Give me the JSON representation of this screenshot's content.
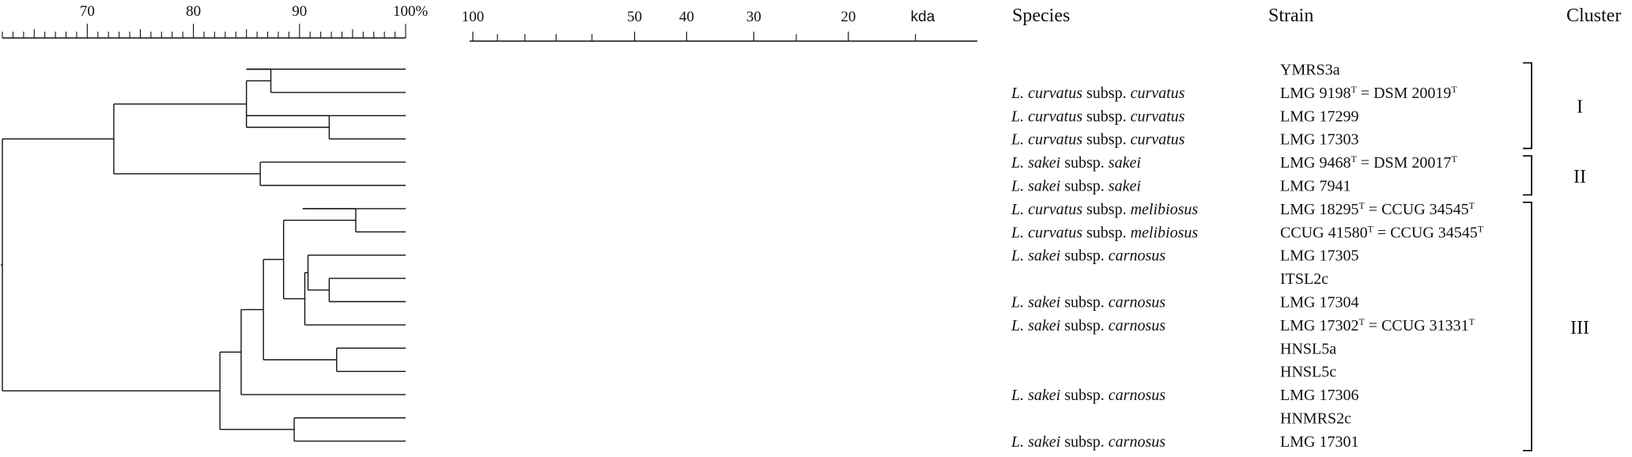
{
  "similarity_axis": {
    "ticks": [
      {
        "value": 70,
        "label": "70"
      },
      {
        "value": 80,
        "label": "80"
      },
      {
        "value": 90,
        "label": "90"
      },
      {
        "value": 100,
        "label": "100%"
      }
    ],
    "range": [
      62,
      100
    ]
  },
  "mw_axis": {
    "unit": "kda",
    "labeled_ticks": [
      {
        "value": 100,
        "label": "100"
      },
      {
        "value": 50,
        "label": "50"
      },
      {
        "value": 40,
        "label": "40"
      },
      {
        "value": 30,
        "label": "30"
      },
      {
        "value": 20,
        "label": "20"
      }
    ],
    "minor_ticks": [
      90,
      80,
      70,
      60,
      25,
      15
    ],
    "range": [
      100,
      13
    ]
  },
  "headers": {
    "species": "Species",
    "strain": "Strain",
    "cluster": "Cluster"
  },
  "rows": [
    {
      "species": {
        "genus": "",
        "sub": "",
        "epithet": ""
      },
      "strain": [
        {
          "t": "YMRS3a"
        }
      ]
    },
    {
      "species": {
        "genus": "L. curvatus",
        "sub": "subsp.",
        "epithet": "curvatus"
      },
      "strain": [
        {
          "t": "LMG 9198"
        },
        {
          "t": "T",
          "sup": true
        },
        {
          "t": " = DSM 20019"
        },
        {
          "t": "T",
          "sup": true
        }
      ]
    },
    {
      "species": {
        "genus": "L. curvatus",
        "sub": "subsp.",
        "epithet": "curvatus"
      },
      "strain": [
        {
          "t": "LMG 17299"
        }
      ]
    },
    {
      "species": {
        "genus": "L. curvatus",
        "sub": "subsp.",
        "epithet": "curvatus"
      },
      "strain": [
        {
          "t": "LMG 17303"
        }
      ]
    },
    {
      "species": {
        "genus": "L. sakei",
        "sub": "subsp.",
        "epithet": "sakei"
      },
      "strain": [
        {
          "t": "LMG 9468"
        },
        {
          "t": "T",
          "sup": true
        },
        {
          "t": " = DSM 20017"
        },
        {
          "t": "T",
          "sup": true
        }
      ]
    },
    {
      "species": {
        "genus": "L. sakei",
        "sub": "subsp.",
        "epithet": "sakei"
      },
      "strain": [
        {
          "t": "LMG 7941"
        }
      ]
    },
    {
      "species": {
        "genus": "L. curvatus",
        "sub": "subsp.",
        "epithet": "melibiosus"
      },
      "strain": [
        {
          "t": "LMG 18295"
        },
        {
          "t": "T",
          "sup": true
        },
        {
          "t": " = CCUG 34545"
        },
        {
          "t": "T",
          "sup": true
        }
      ]
    },
    {
      "species": {
        "genus": "L. curvatus",
        "sub": "subsp.",
        "epithet": "melibiosus"
      },
      "strain": [
        {
          "t": "CCUG 41580"
        },
        {
          "t": "T",
          "sup": true
        },
        {
          "t": " = CCUG 34545"
        },
        {
          "t": "T",
          "sup": true
        }
      ]
    },
    {
      "species": {
        "genus": "L. sakei",
        "sub": "subsp.",
        "epithet": "carnosus"
      },
      "strain": [
        {
          "t": "LMG 17305"
        }
      ]
    },
    {
      "species": {
        "genus": "",
        "sub": "",
        "epithet": ""
      },
      "strain": [
        {
          "t": "ITSL2c"
        }
      ]
    },
    {
      "species": {
        "genus": "L. sakei",
        "sub": "subsp.",
        "epithet": "carnosus"
      },
      "strain": [
        {
          "t": "LMG 17304"
        }
      ]
    },
    {
      "species": {
        "genus": "L. sakei",
        "sub": "subsp.",
        "epithet": "carnosus"
      },
      "strain": [
        {
          "t": "LMG 17302"
        },
        {
          "t": "T",
          "sup": true
        },
        {
          "t": " = CCUG 31331"
        },
        {
          "t": "T",
          "sup": true
        }
      ]
    },
    {
      "species": {
        "genus": "",
        "sub": "",
        "epithet": ""
      },
      "strain": [
        {
          "t": "HNSL5a"
        }
      ]
    },
    {
      "species": {
        "genus": "",
        "sub": "",
        "epithet": ""
      },
      "strain": [
        {
          "t": "HNSL5c"
        }
      ]
    },
    {
      "species": {
        "genus": "L. sakei",
        "sub": "subsp.",
        "epithet": "carnosus"
      },
      "strain": [
        {
          "t": "LMG 17306"
        }
      ]
    },
    {
      "species": {
        "genus": "",
        "sub": "",
        "epithet": ""
      },
      "strain": [
        {
          "t": "HNMRS2c"
        }
      ]
    },
    {
      "species": {
        "genus": "L. sakei",
        "sub": "subsp.",
        "epithet": "carnosus"
      },
      "strain": [
        {
          "t": "LMG 17301"
        }
      ]
    }
  ],
  "clusters": [
    {
      "label": "I",
      "first_row": 0,
      "last_row": 3
    },
    {
      "label": "II",
      "first_row": 4,
      "last_row": 5
    },
    {
      "label": "III",
      "first_row": 6,
      "last_row": 16
    }
  ],
  "dendrogram": {
    "root": {
      "sim": 62.0,
      "children": [
        {
          "sim": 72.5,
          "children": [
            {
              "sim": 85.0,
              "children": [
                {
                  "sim": 87.3,
                  "children": [
                    {
                      "sim": 85.0,
                      "children": [
                        {
                          "leaf": 0
                        }
                      ]
                    },
                    {
                      "leaf": 1
                    }
                  ]
                },
                {
                  "sim": 92.8,
                  "children": [
                    {
                      "sim": 85.0,
                      "children": [
                        {
                          "leaf": 2
                        }
                      ]
                    },
                    {
                      "leaf": 3
                    }
                  ]
                }
              ]
            },
            {
              "sim": 86.3,
              "children": [
                {
                  "leaf": 4
                },
                {
                  "leaf": 5
                }
              ]
            }
          ]
        },
        {
          "sim": 82.5,
          "children": [
            {
              "sim": 84.5,
              "children": [
                {
                  "sim": 86.6,
                  "children": [
                    {
                      "sim": 88.5,
                      "children": [
                        {
                          "sim": 95.3,
                          "children": [
                            {
                              "sim": 90.3,
                              "children": [
                                {
                                  "leaf": 6
                                }
                              ]
                            },
                            {
                              "leaf": 7
                            }
                          ]
                        },
                        {
                          "sim": 90.5,
                          "children": [
                            {
                              "sim": 90.8,
                              "children": [
                                {
                                  "leaf": 8
                                },
                                {
                                  "sim": 92.8,
                                  "children": [
                                    {
                                      "leaf": 9
                                    },
                                    {
                                      "leaf": 10
                                    }
                                  ]
                                }
                              ]
                            },
                            {
                              "leaf": 11
                            }
                          ]
                        }
                      ]
                    },
                    {
                      "sim": 93.5,
                      "children": [
                        {
                          "leaf": 12
                        },
                        {
                          "leaf": 13
                        }
                      ]
                    }
                  ]
                },
                {
                  "leaf": 14
                }
              ]
            },
            {
              "sim": 89.5,
              "children": [
                {
                  "leaf": 15
                },
                {
                  "leaf": 16
                }
              ]
            }
          ]
        }
      ]
    }
  }
}
